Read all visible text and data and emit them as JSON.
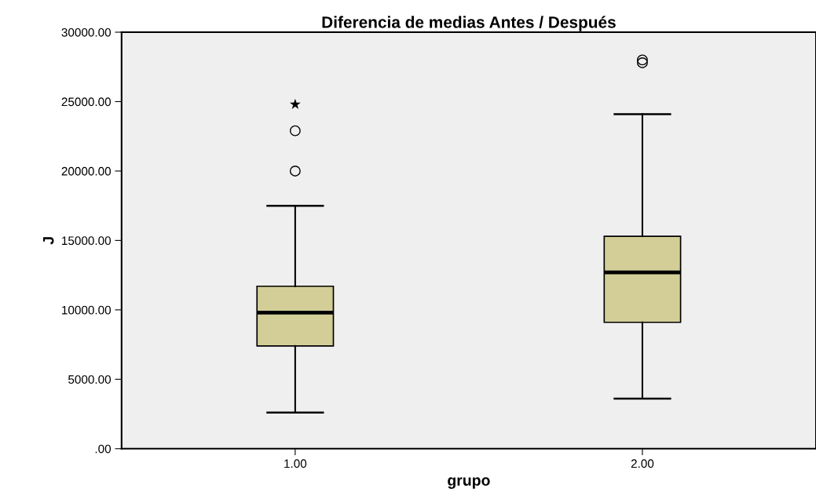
{
  "chart_data": {
    "type": "box",
    "title": "Diferencia de medias Antes / Después",
    "xlabel": "grupo",
    "ylabel": "J",
    "categories": [
      "1.00",
      "2.00"
    ],
    "boxes": [
      {
        "low": 2600,
        "q1": 7400,
        "median": 9800,
        "q3": 11700,
        "high": 17500,
        "outliers": [
          20000,
          22900
        ]
      },
      {
        "low": 3600,
        "q1": 9100,
        "median": 12700,
        "q3": 15300,
        "high": 24100,
        "outliers": [
          27800,
          28000
        ]
      }
    ],
    "color": "#d3ce97",
    "series": [
      {
        "type": "scatter",
        "x": [
          "1.00"
        ],
        "values": [
          24800
        ],
        "marker": "star",
        "color": "#000000"
      }
    ],
    "ylim": [
      0,
      30000
    ],
    "yticks": [
      {
        "value": 0,
        "label": ".00"
      },
      {
        "value": 5000,
        "label": "5000.00"
      },
      {
        "value": 10000,
        "label": "10000.00"
      },
      {
        "value": 15000,
        "label": "15000.00"
      },
      {
        "value": 20000,
        "label": "20000.00"
      },
      {
        "value": 25000,
        "label": "25000.00"
      },
      {
        "value": 30000,
        "label": "30000.00"
      }
    ],
    "grid": false
  }
}
